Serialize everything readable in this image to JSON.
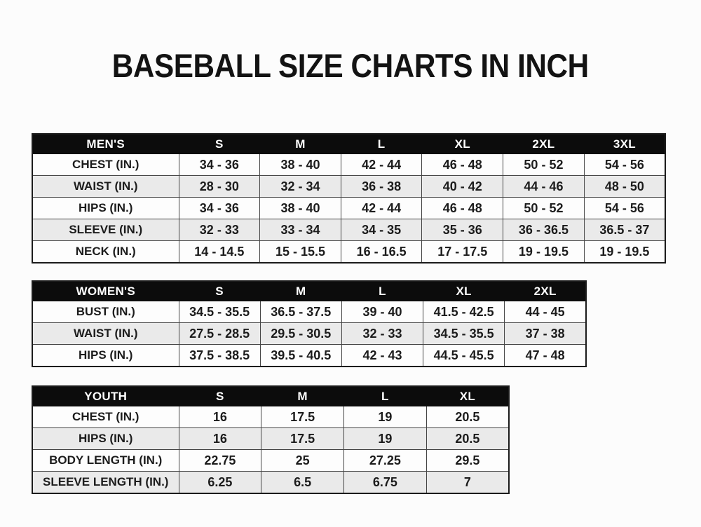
{
  "heading": "BASEBALL SIZE CHARTS IN INCH",
  "colors": {
    "page_bg": "#fcfcfc",
    "header_bg": "#0c0c0c",
    "header_text": "#ffffff",
    "row_bg": "#fdfdfd",
    "row_alt_bg": "#eaeaea",
    "border": "#454545",
    "text": "#1c1c1c"
  },
  "chart_data": [
    {
      "type": "table",
      "title": "MEN'S",
      "columns": [
        "S",
        "M",
        "L",
        "XL",
        "2XL",
        "3XL"
      ],
      "rows": [
        {
          "label": "CHEST (IN.)",
          "values": [
            "34 - 36",
            "38 - 40",
            "42 - 44",
            "46 - 48",
            "50 - 52",
            "54 - 56"
          ]
        },
        {
          "label": "WAIST (IN.)",
          "values": [
            "28 - 30",
            "32 - 34",
            "36 - 38",
            "40 - 42",
            "44 - 46",
            "48 - 50"
          ]
        },
        {
          "label": "HIPS (IN.)",
          "values": [
            "34 - 36",
            "38 - 40",
            "42 - 44",
            "46 - 48",
            "50 - 52",
            "54 - 56"
          ]
        },
        {
          "label": "SLEEVE (IN.)",
          "values": [
            "32 - 33",
            "33 - 34",
            "34 - 35",
            "35 - 36",
            "36 - 36.5",
            "36.5 - 37"
          ]
        },
        {
          "label": "NECK (IN.)",
          "values": [
            "14 - 14.5",
            "15 - 15.5",
            "16 - 16.5",
            "17 - 17.5",
            "19 - 19.5",
            "19 - 19.5"
          ]
        }
      ]
    },
    {
      "type": "table",
      "title": "WOMEN'S",
      "columns": [
        "S",
        "M",
        "L",
        "XL",
        "2XL"
      ],
      "rows": [
        {
          "label": "BUST (IN.)",
          "values": [
            "34.5 - 35.5",
            "36.5 - 37.5",
            "39 - 40",
            "41.5 - 42.5",
            "44 - 45"
          ]
        },
        {
          "label": "WAIST (IN.)",
          "values": [
            "27.5 - 28.5",
            "29.5 - 30.5",
            "32 - 33",
            "34.5 - 35.5",
            "37 - 38"
          ]
        },
        {
          "label": "HIPS (IN.)",
          "values": [
            "37.5 - 38.5",
            "39.5 - 40.5",
            "42 - 43",
            "44.5 - 45.5",
            "47 - 48"
          ]
        }
      ]
    },
    {
      "type": "table",
      "title": "YOUTH",
      "columns": [
        "S",
        "M",
        "L",
        "XL"
      ],
      "rows": [
        {
          "label": "CHEST (IN.)",
          "values": [
            "16",
            "17.5",
            "19",
            "20.5"
          ]
        },
        {
          "label": "HIPS (IN.)",
          "values": [
            "16",
            "17.5",
            "19",
            "20.5"
          ]
        },
        {
          "label": "BODY LENGTH (IN.)",
          "values": [
            "22.75",
            "25",
            "27.25",
            "29.5"
          ]
        },
        {
          "label": "SLEEVE LENGTH (IN.)",
          "values": [
            "6.25",
            "6.5",
            "6.75",
            "7"
          ]
        }
      ]
    }
  ]
}
